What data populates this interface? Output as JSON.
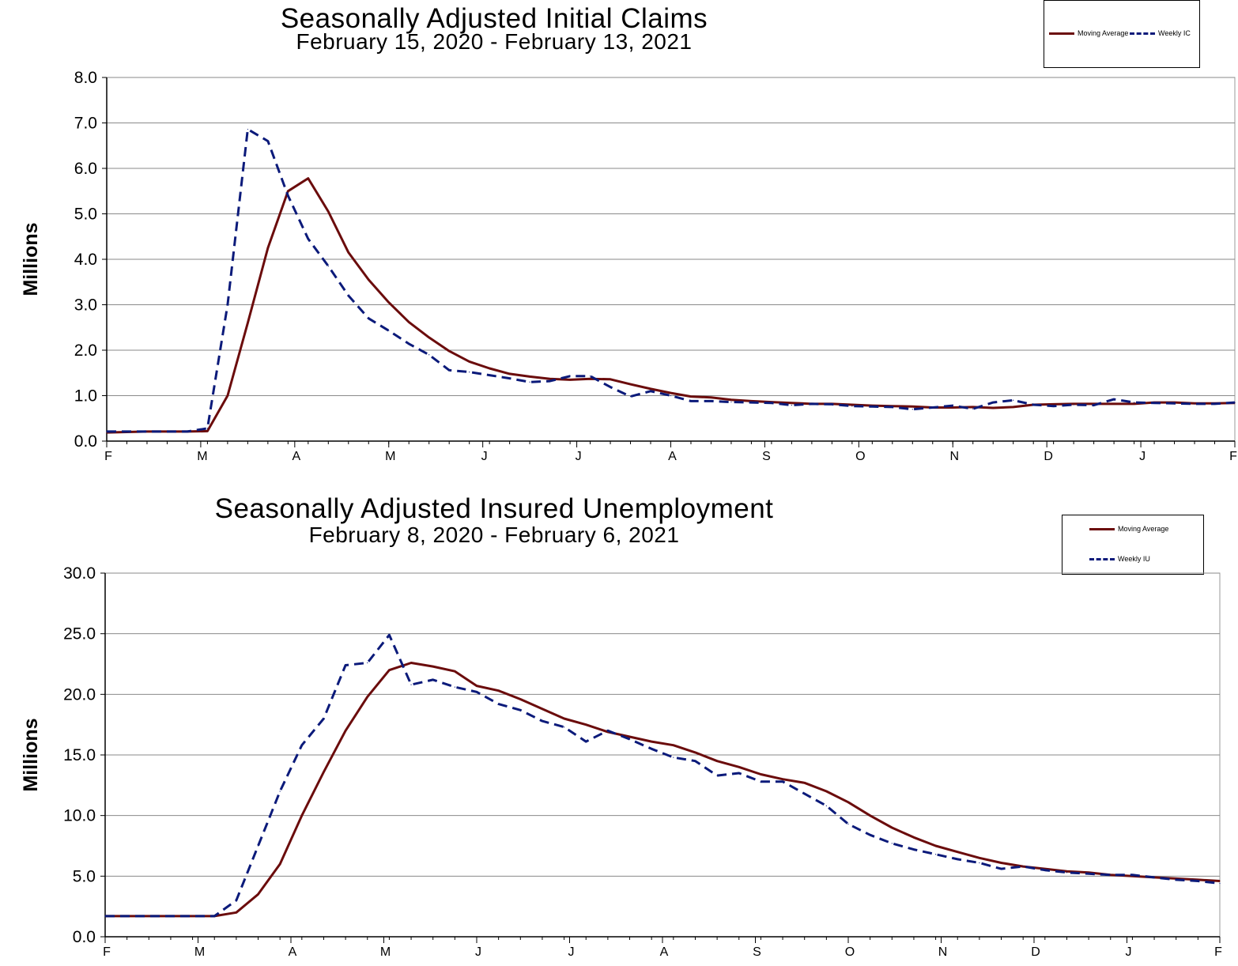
{
  "chart_data": [
    {
      "type": "line",
      "title": "Seasonally Adjusted Initial Claims",
      "subtitle": "February 15, 2020 - February 13, 2021",
      "ylabel": "Millions",
      "xlabel": "",
      "ylim": [
        0,
        8
      ],
      "yticks": [
        "0.0",
        "1.0",
        "2.0",
        "3.0",
        "4.0",
        "5.0",
        "6.0",
        "7.0",
        "8.0"
      ],
      "month_labels": [
        "F",
        "M",
        "A",
        "M",
        "J",
        "J",
        "A",
        "S",
        "O",
        "N",
        "D",
        "J",
        "F"
      ],
      "grid": true,
      "legend_position": "top-right",
      "series": [
        {
          "name": "Moving Average",
          "color": "#6b0c0c",
          "style": "solid",
          "values": [
            0.19,
            0.2,
            0.21,
            0.21,
            0.21,
            0.22,
            1.0,
            2.6,
            4.25,
            5.5,
            5.78,
            5.05,
            4.15,
            3.55,
            3.05,
            2.62,
            2.28,
            1.98,
            1.75,
            1.6,
            1.48,
            1.42,
            1.37,
            1.35,
            1.37,
            1.36,
            1.25,
            1.15,
            1.06,
            0.98,
            0.96,
            0.91,
            0.88,
            0.86,
            0.84,
            0.82,
            0.82,
            0.8,
            0.78,
            0.77,
            0.76,
            0.74,
            0.74,
            0.75,
            0.73,
            0.75,
            0.8,
            0.81,
            0.82,
            0.82,
            0.82,
            0.82,
            0.85,
            0.85,
            0.83,
            0.83,
            0.84
          ]
        },
        {
          "name": "Weekly IC",
          "color": "#0b1a7a",
          "style": "dashed",
          "values": [
            0.21,
            0.21,
            0.21,
            0.21,
            0.21,
            0.28,
            3.0,
            6.86,
            6.6,
            5.4,
            4.45,
            3.85,
            3.2,
            2.7,
            2.43,
            2.14,
            1.9,
            1.56,
            1.52,
            1.45,
            1.38,
            1.3,
            1.32,
            1.43,
            1.43,
            1.19,
            0.98,
            1.1,
            1.0,
            0.88,
            0.88,
            0.86,
            0.85,
            0.84,
            0.79,
            0.82,
            0.81,
            0.77,
            0.76,
            0.75,
            0.7,
            0.74,
            0.78,
            0.71,
            0.85,
            0.9,
            0.8,
            0.77,
            0.8,
            0.79,
            0.92,
            0.85,
            0.84,
            0.83,
            0.82,
            0.82,
            0.85
          ]
        }
      ]
    },
    {
      "type": "line",
      "title": "Seasonally Adjusted Insured Unemployment",
      "subtitle": "February 8, 2020 - February 6, 2021",
      "ylabel": "Millions",
      "xlabel": "",
      "ylim": [
        0,
        30
      ],
      "yticks": [
        "0.0",
        "5.0",
        "10.0",
        "15.0",
        "20.0",
        "25.0",
        "30.0"
      ],
      "month_labels": [
        "F",
        "M",
        "A",
        "M",
        "J",
        "J",
        "A",
        "S",
        "O",
        "N",
        "D",
        "J",
        "F"
      ],
      "grid": true,
      "legend_position": "top-right",
      "series": [
        {
          "name": "Moving Average",
          "color": "#6b0c0c",
          "style": "solid",
          "values": [
            1.7,
            1.7,
            1.7,
            1.7,
            1.7,
            1.7,
            2.0,
            3.5,
            6.0,
            10.0,
            13.6,
            17.0,
            19.8,
            22.0,
            22.6,
            22.3,
            21.9,
            20.7,
            20.3,
            19.6,
            18.8,
            18.0,
            17.5,
            16.9,
            16.5,
            16.1,
            15.8,
            15.2,
            14.5,
            14.0,
            13.4,
            13.0,
            12.7,
            12.0,
            11.1,
            10.0,
            9.0,
            8.2,
            7.5,
            7.0,
            6.5,
            6.1,
            5.8,
            5.6,
            5.4,
            5.3,
            5.1,
            5.0,
            4.9,
            4.8,
            4.7,
            4.6
          ]
        },
        {
          "name": "Weekly IU",
          "color": "#0b1a7a",
          "style": "dashed",
          "values": [
            1.7,
            1.7,
            1.7,
            1.7,
            1.7,
            1.7,
            3.0,
            7.5,
            12.0,
            15.8,
            18.0,
            22.4,
            22.6,
            24.9,
            20.8,
            21.2,
            20.6,
            20.2,
            19.2,
            18.7,
            17.8,
            17.3,
            16.1,
            17.0,
            16.3,
            15.5,
            14.8,
            14.5,
            13.3,
            13.5,
            12.8,
            12.8,
            11.8,
            10.8,
            9.3,
            8.4,
            7.7,
            7.2,
            6.8,
            6.4,
            6.1,
            5.6,
            5.8,
            5.5,
            5.3,
            5.2,
            5.1,
            5.1,
            4.9,
            4.7,
            4.6,
            4.4
          ]
        }
      ]
    }
  ]
}
